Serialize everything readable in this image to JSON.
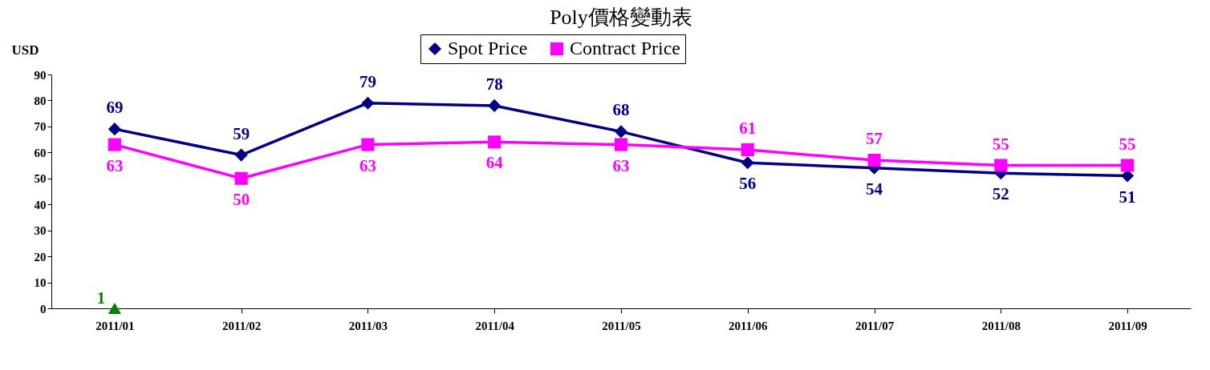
{
  "chart_data": {
    "type": "line",
    "title": "Poly價格變動表",
    "ylabel": "USD",
    "categories": [
      "2011/01",
      "2011/02",
      "2011/03",
      "2011/04",
      "2011/05",
      "2011/06",
      "2011/07",
      "2011/08",
      "2011/09"
    ],
    "series": [
      {
        "name": "Spot Price",
        "color": "#000080",
        "marker": "diamond",
        "values": [
          69,
          59,
          79,
          78,
          68,
          56,
          54,
          52,
          51
        ]
      },
      {
        "name": "Contract Price",
        "color": "#ff00ff",
        "marker": "square",
        "values": [
          63,
          50,
          63,
          64,
          63,
          61,
          57,
          55,
          55
        ]
      },
      {
        "type": "scatter",
        "color": "#008000",
        "marker": "triangle",
        "values": [
          0,
          null,
          null,
          null,
          null,
          null,
          null,
          null,
          null
        ],
        "value_labels": [
          null,
          null,
          null,
          null,
          null,
          null,
          null,
          null,
          null
        ]
      }
    ],
    "annotations": [
      {
        "text": "1",
        "x": "2011/01",
        "y": 0
      }
    ],
    "ylim": [
      0,
      90
    ],
    "yticks": [
      0,
      10,
      20,
      30,
      40,
      50,
      60,
      70,
      80,
      90
    ],
    "grid": false,
    "legend": "top",
    "data_labels": true
  }
}
